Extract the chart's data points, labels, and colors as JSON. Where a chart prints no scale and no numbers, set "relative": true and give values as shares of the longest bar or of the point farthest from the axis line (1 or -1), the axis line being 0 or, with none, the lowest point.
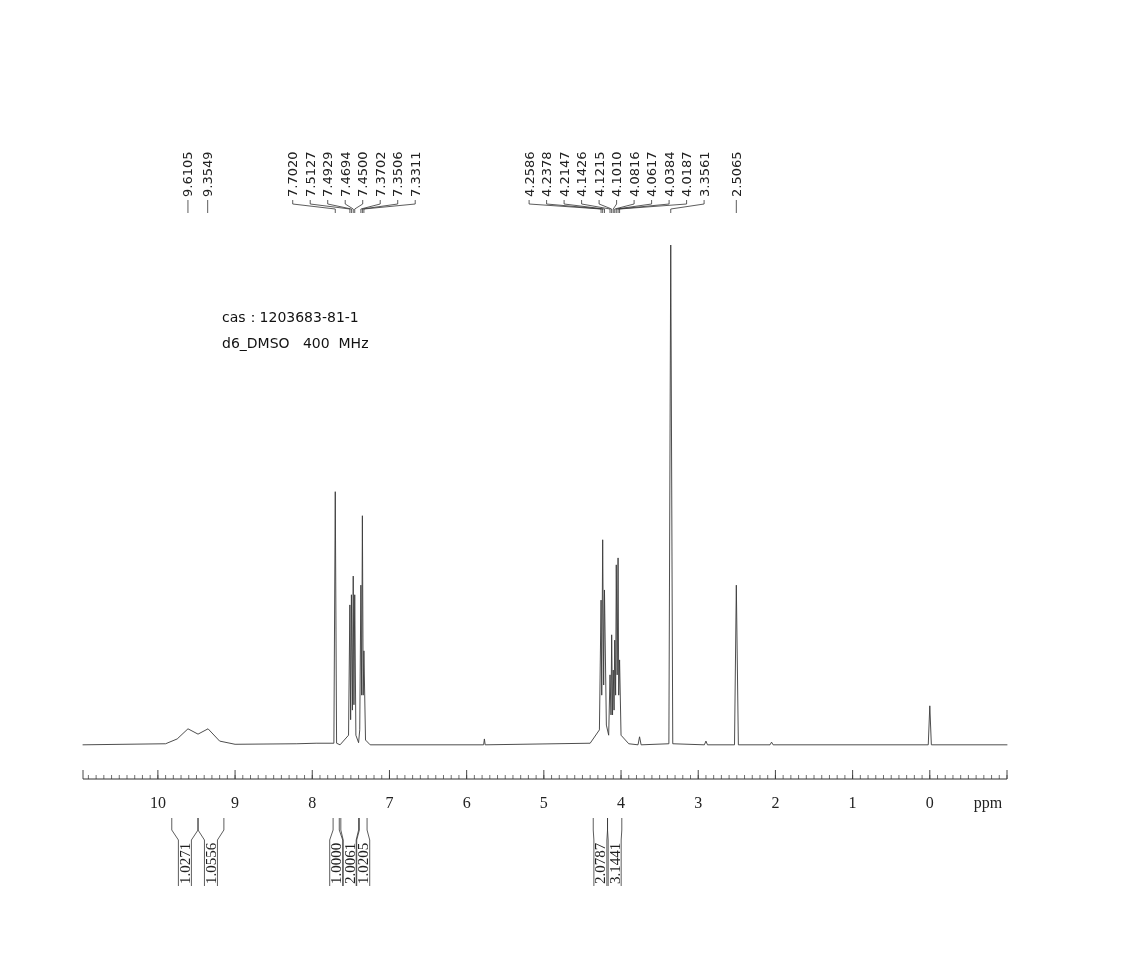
{
  "chart_data": {
    "type": "line",
    "relative": true,
    "xlabel": "ppm",
    "xlim": [
      10.97,
      -1.0
    ],
    "xticks": [
      10,
      9,
      8,
      7,
      6,
      5,
      4,
      3,
      2,
      1,
      0
    ],
    "grid": false,
    "marker": "none",
    "line_style": "solid",
    "series": [
      {
        "color": "#3a3a3a",
        "x": [
          10.97,
          9.9,
          9.75,
          9.61,
          9.48,
          9.35,
          9.2,
          9.0,
          8.2,
          7.95,
          7.72,
          7.702,
          7.685,
          7.64,
          7.53,
          7.5127,
          7.503,
          7.4929,
          7.48,
          7.4694,
          7.46,
          7.45,
          7.435,
          7.4,
          7.385,
          7.3702,
          7.36,
          7.3506,
          7.34,
          7.3311,
          7.31,
          7.25,
          5.78,
          5.77,
          5.76,
          4.4,
          4.28,
          4.2586,
          4.25,
          4.2378,
          4.225,
          4.2147,
          4.19,
          4.16,
          4.1426,
          4.13,
          4.1215,
          4.11,
          4.101,
          4.09,
          4.0816,
          4.07,
          4.0617,
          4.05,
          4.0384,
          4.03,
          4.0187,
          4.0,
          3.9,
          3.78,
          3.76,
          3.74,
          3.38,
          3.3561,
          3.33,
          2.92,
          2.9,
          2.88,
          2.53,
          2.5065,
          2.48,
          2.07,
          2.05,
          2.03,
          0.02,
          0.0,
          -0.02,
          -1.0
        ],
        "values": [
          0.064,
          0.066,
          0.075,
          0.094,
          0.084,
          0.094,
          0.071,
          0.065,
          0.066,
          0.067,
          0.067,
          0.538,
          0.067,
          0.064,
          0.082,
          0.326,
          0.111,
          0.345,
          0.129,
          0.38,
          0.139,
          0.345,
          0.082,
          0.068,
          0.092,
          0.363,
          0.157,
          0.493,
          0.157,
          0.24,
          0.073,
          0.064,
          0.064,
          0.075,
          0.064,
          0.067,
          0.092,
          0.335,
          0.157,
          0.448,
          0.176,
          0.354,
          0.101,
          0.082,
          0.195,
          0.12,
          0.27,
          0.12,
          0.204,
          0.129,
          0.26,
          0.157,
          0.401,
          0.195,
          0.414,
          0.157,
          0.223,
          0.082,
          0.066,
          0.064,
          0.079,
          0.064,
          0.066,
          1.0,
          0.066,
          0.064,
          0.071,
          0.064,
          0.064,
          0.363,
          0.064,
          0.064,
          0.069,
          0.064,
          0.064,
          0.137,
          0.064,
          0.064
        ]
      }
    ],
    "annotations": [
      "cas：1203683-81-1",
      "d6_DMSO   400  MHz",
      {
        "text": "9.6105",
        "x": 9.6105
      },
      {
        "text": "9.3549",
        "x": 9.3549
      },
      {
        "text": "7.7020",
        "x": 7.702
      },
      {
        "text": "7.5127",
        "x": 7.5127
      },
      {
        "text": "7.4929",
        "x": 7.4929
      },
      {
        "text": "7.4694",
        "x": 7.4694
      },
      {
        "text": "7.4500",
        "x": 7.45
      },
      {
        "text": "7.3702",
        "x": 7.3702
      },
      {
        "text": "7.3506",
        "x": 7.3506
      },
      {
        "text": "7.3311",
        "x": 7.3311
      },
      {
        "text": "4.2586",
        "x": 4.2586
      },
      {
        "text": "4.2378",
        "x": 4.2378
      },
      {
        "text": "4.2147",
        "x": 4.2147
      },
      {
        "text": "4.1426",
        "x": 4.1426
      },
      {
        "text": "4.1215",
        "x": 4.1215
      },
      {
        "text": "4.1010",
        "x": 4.101
      },
      {
        "text": "4.0816",
        "x": 4.0816
      },
      {
        "text": "4.0617",
        "x": 4.0617
      },
      {
        "text": "4.0384",
        "x": 4.0384
      },
      {
        "text": "4.0187",
        "x": 4.0187
      },
      {
        "text": "3.3561",
        "x": 3.3561
      },
      {
        "text": "2.5065",
        "x": 2.5065
      },
      "1.0271",
      "1.0556",
      "1.0000",
      "2.0061",
      "1.0205",
      "2.0787",
      "3.1441"
    ]
  }
}
